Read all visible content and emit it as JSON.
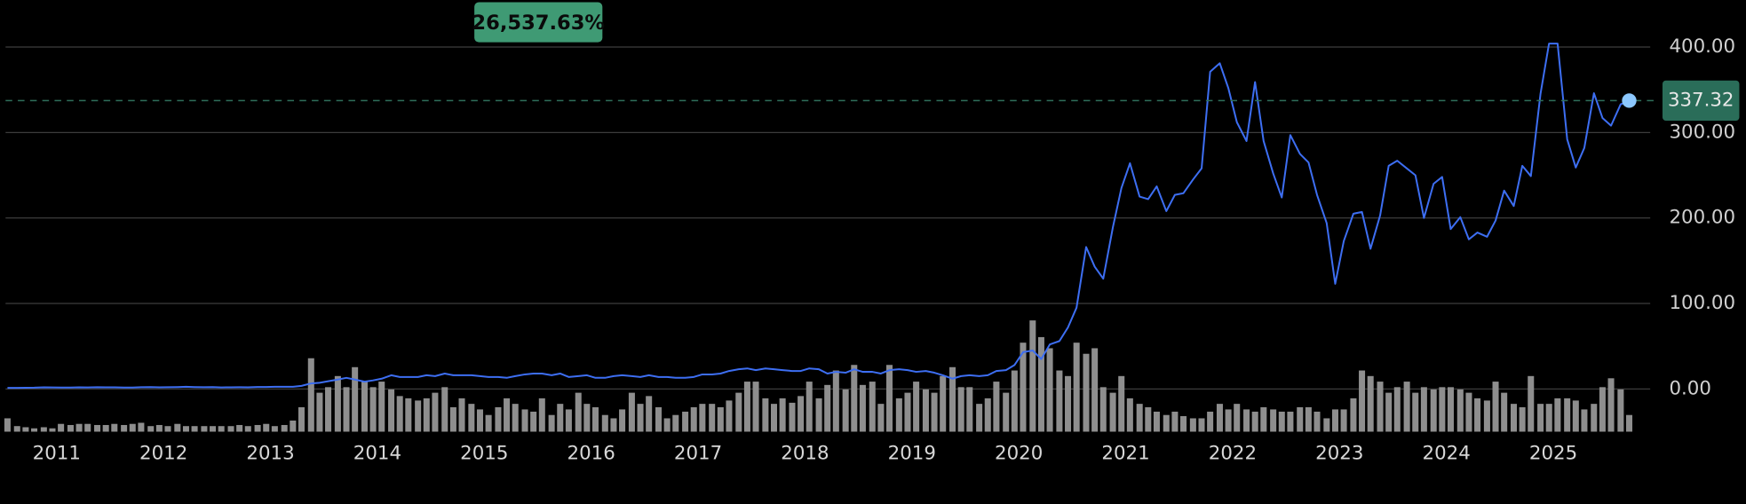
{
  "chart_data": {
    "type": "line",
    "annotation": "26,537.63%",
    "xlim": [
      2010.47,
      2025.99
    ],
    "xticks": [
      2011,
      2012,
      2013,
      2014,
      2015,
      2016,
      2017,
      2018,
      2019,
      2020,
      2021,
      2022,
      2023,
      2024,
      2025
    ],
    "ylim": [
      -50,
      455
    ],
    "yticks": [
      {
        "value": 0,
        "label": "0.00"
      },
      {
        "value": 100,
        "label": "100.00"
      },
      {
        "value": 200,
        "label": "200.00"
      },
      {
        "value": 300,
        "label": "300.00"
      },
      {
        "value": 400,
        "label": "400.00"
      }
    ],
    "y2lim": [
      0,
      100
    ],
    "grid": true,
    "x": [
      2010.54,
      2010.63,
      2010.71,
      2010.79,
      2010.88,
      2010.96,
      2011.04,
      2011.13,
      2011.21,
      2011.29,
      2011.38,
      2011.46,
      2011.54,
      2011.63,
      2011.71,
      2011.79,
      2011.88,
      2011.96,
      2012.04,
      2012.13,
      2012.21,
      2012.29,
      2012.38,
      2012.46,
      2012.54,
      2012.63,
      2012.71,
      2012.79,
      2012.88,
      2012.96,
      2013.04,
      2013.13,
      2013.21,
      2013.29,
      2013.38,
      2013.46,
      2013.54,
      2013.63,
      2013.71,
      2013.79,
      2013.88,
      2013.96,
      2014.04,
      2014.13,
      2014.21,
      2014.29,
      2014.38,
      2014.46,
      2014.54,
      2014.63,
      2014.71,
      2014.79,
      2014.88,
      2014.96,
      2015.04,
      2015.13,
      2015.21,
      2015.29,
      2015.38,
      2015.46,
      2015.54,
      2015.63,
      2015.71,
      2015.79,
      2015.88,
      2015.96,
      2016.04,
      2016.13,
      2016.21,
      2016.29,
      2016.38,
      2016.46,
      2016.54,
      2016.63,
      2016.71,
      2016.79,
      2016.88,
      2016.96,
      2017.04,
      2017.13,
      2017.21,
      2017.29,
      2017.38,
      2017.46,
      2017.54,
      2017.63,
      2017.71,
      2017.79,
      2017.88,
      2017.96,
      2018.04,
      2018.13,
      2018.21,
      2018.29,
      2018.38,
      2018.46,
      2018.54,
      2018.63,
      2018.71,
      2018.79,
      2018.88,
      2018.96,
      2019.04,
      2019.13,
      2019.21,
      2019.29,
      2019.38,
      2019.46,
      2019.54,
      2019.63,
      2019.71,
      2019.79,
      2019.88,
      2019.96,
      2020.04,
      2020.13,
      2020.21,
      2020.29,
      2020.38,
      2020.46,
      2020.54,
      2020.63,
      2020.71,
      2020.79,
      2020.88,
      2020.96,
      2021.04,
      2021.13,
      2021.21,
      2021.29,
      2021.38,
      2021.46,
      2021.54,
      2021.63,
      2021.71,
      2021.79,
      2021.88,
      2021.96,
      2022.04,
      2022.13,
      2022.21,
      2022.29,
      2022.38,
      2022.46,
      2022.54,
      2022.63,
      2022.71,
      2022.79,
      2022.88,
      2022.96,
      2023.04,
      2023.13,
      2023.21,
      2023.29,
      2023.38,
      2023.46,
      2023.54,
      2023.63,
      2023.71,
      2023.79,
      2023.88,
      2023.96,
      2024.04,
      2024.13,
      2024.21,
      2024.29,
      2024.38,
      2024.46,
      2024.54,
      2024.63,
      2024.71,
      2024.79,
      2024.88,
      2024.96,
      2025.04,
      2025.13,
      2025.21,
      2025.29,
      2025.38,
      2025.46,
      2025.54,
      2025.63,
      2025.71
    ],
    "series": [
      {
        "color": "#3d6ef2",
        "values": [
          1.3,
          1.3,
          1.4,
          1.5,
          1.9,
          1.8,
          1.6,
          1.6,
          1.9,
          1.8,
          2.0,
          1.9,
          1.9,
          1.6,
          1.6,
          2.0,
          2.2,
          1.9,
          2.0,
          2.2,
          2.5,
          2.2,
          2.0,
          2.1,
          1.8,
          1.9,
          2.0,
          1.9,
          2.3,
          2.3,
          2.5,
          2.5,
          2.5,
          3.6,
          6.5,
          7.2,
          9,
          11,
          13,
          11,
          8.5,
          10,
          12,
          16,
          14,
          14,
          14,
          16,
          15,
          18,
          16,
          16,
          16,
          15,
          14,
          14,
          13,
          15,
          17,
          18,
          18,
          16,
          18,
          14,
          15,
          16,
          13,
          13,
          15,
          16,
          15,
          14,
          16,
          14,
          14,
          13,
          13,
          14,
          17,
          17,
          18,
          21,
          23,
          24,
          22,
          24,
          23,
          22,
          21,
          21,
          24,
          23,
          18,
          20,
          19,
          23,
          20,
          20,
          18,
          22,
          23,
          22,
          20,
          21,
          19,
          16,
          12,
          15,
          16,
          15,
          16,
          21,
          22,
          28,
          43,
          45,
          35,
          52,
          56,
          72,
          95,
          166,
          143,
          129,
          189,
          235,
          264,
          225,
          222,
          237,
          208,
          227,
          229,
          245,
          258,
          371,
          381,
          352,
          312,
          290,
          359,
          290,
          252,
          224,
          297,
          275,
          265,
          227,
          194,
          123,
          173,
          205,
          207,
          164,
          203,
          261,
          267,
          258,
          250,
          200,
          240,
          248,
          187,
          201,
          175,
          183,
          178,
          197,
          232,
          214,
          261,
          249,
          345,
          404,
          404,
          292,
          259,
          282,
          346,
          317,
          308,
          333,
          337.32
        ]
      },
      {
        "type": "bar",
        "axis": "y2",
        "color": "#8e8e8e",
        "values": [
          12,
          5,
          4,
          3,
          4,
          3,
          7,
          6,
          7,
          7,
          6,
          6,
          7,
          6,
          7,
          8,
          5,
          6,
          5,
          7,
          5,
          5,
          5,
          5,
          5,
          5,
          6,
          5,
          6,
          7,
          5,
          6,
          10,
          22,
          66,
          35,
          40,
          50,
          40,
          58,
          45,
          40,
          45,
          38,
          32,
          30,
          28,
          30,
          35,
          40,
          22,
          30,
          25,
          20,
          15,
          22,
          30,
          25,
          20,
          18,
          30,
          15,
          25,
          20,
          35,
          25,
          22,
          15,
          12,
          20,
          35,
          25,
          32,
          22,
          12,
          15,
          18,
          22,
          25,
          25,
          22,
          28,
          35,
          45,
          45,
          30,
          25,
          30,
          26,
          32,
          45,
          30,
          42,
          55,
          38,
          60,
          42,
          45,
          25,
          60,
          30,
          35,
          45,
          38,
          35,
          50,
          58,
          40,
          40,
          25,
          30,
          45,
          35,
          55,
          80,
          100,
          85,
          75,
          55,
          50,
          80,
          70,
          75,
          40,
          35,
          50,
          30,
          25,
          22,
          18,
          15,
          18,
          14,
          12,
          12,
          18,
          25,
          20,
          25,
          20,
          18,
          22,
          20,
          18,
          18,
          22,
          22,
          18,
          12,
          20,
          20,
          30,
          55,
          50,
          45,
          35,
          40,
          45,
          35,
          40,
          38,
          40,
          40,
          38,
          35,
          30,
          28,
          45,
          35,
          25,
          22,
          50,
          25,
          25,
          30,
          30,
          28,
          20,
          25,
          40,
          48,
          38,
          15
        ]
      }
    ]
  }
}
